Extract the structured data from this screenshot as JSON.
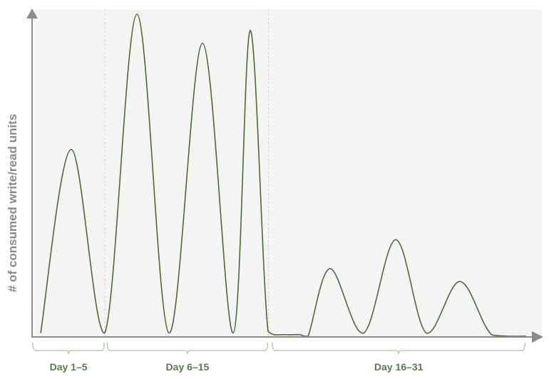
{
  "chart_data": {
    "type": "line",
    "title": "",
    "ylabel": "# of consumed write/read units",
    "xlabel": "",
    "x_unit": "day",
    "xlim": [
      1,
      32
    ],
    "ylim": [
      0,
      100
    ],
    "grid": false,
    "periods": [
      {
        "label": "Day 1–5",
        "start": 1,
        "end": 5.5
      },
      {
        "label": "Day 6–15",
        "start": 5.6,
        "end": 15.6
      },
      {
        "label": "Day 16–31",
        "start": 15.8,
        "end": 31.5
      }
    ],
    "dividers": [
      5.5,
      15.6
    ],
    "series": [
      {
        "color": "#4a6b35",
        "points": [
          [
            1.53,
            1
          ],
          [
            3.42,
            58
          ],
          [
            5.49,
            1
          ],
          [
            7.48,
            100
          ],
          [
            9.46,
            1
          ],
          [
            11.53,
            91
          ],
          [
            13.42,
            1
          ],
          [
            14.48,
            95
          ],
          [
            15.58,
            1.5
          ],
          [
            16.64,
            0.5
          ],
          [
            17.52,
            0.5
          ],
          [
            18.05,
            0
          ],
          [
            19.41,
            21
          ],
          [
            21.48,
            1
          ],
          [
            23.47,
            30
          ],
          [
            25.36,
            1
          ],
          [
            27.43,
            17
          ],
          [
            29.41,
            0.4
          ],
          [
            31.53,
            0
          ]
        ]
      }
    ],
    "colors": {
      "plot_bg": "#f4f4f4",
      "axis": "#8c8c8c",
      "bracket": "#a9c59f",
      "period_label": "#5b7a4a",
      "ylabel": "#8a8a8a"
    }
  }
}
